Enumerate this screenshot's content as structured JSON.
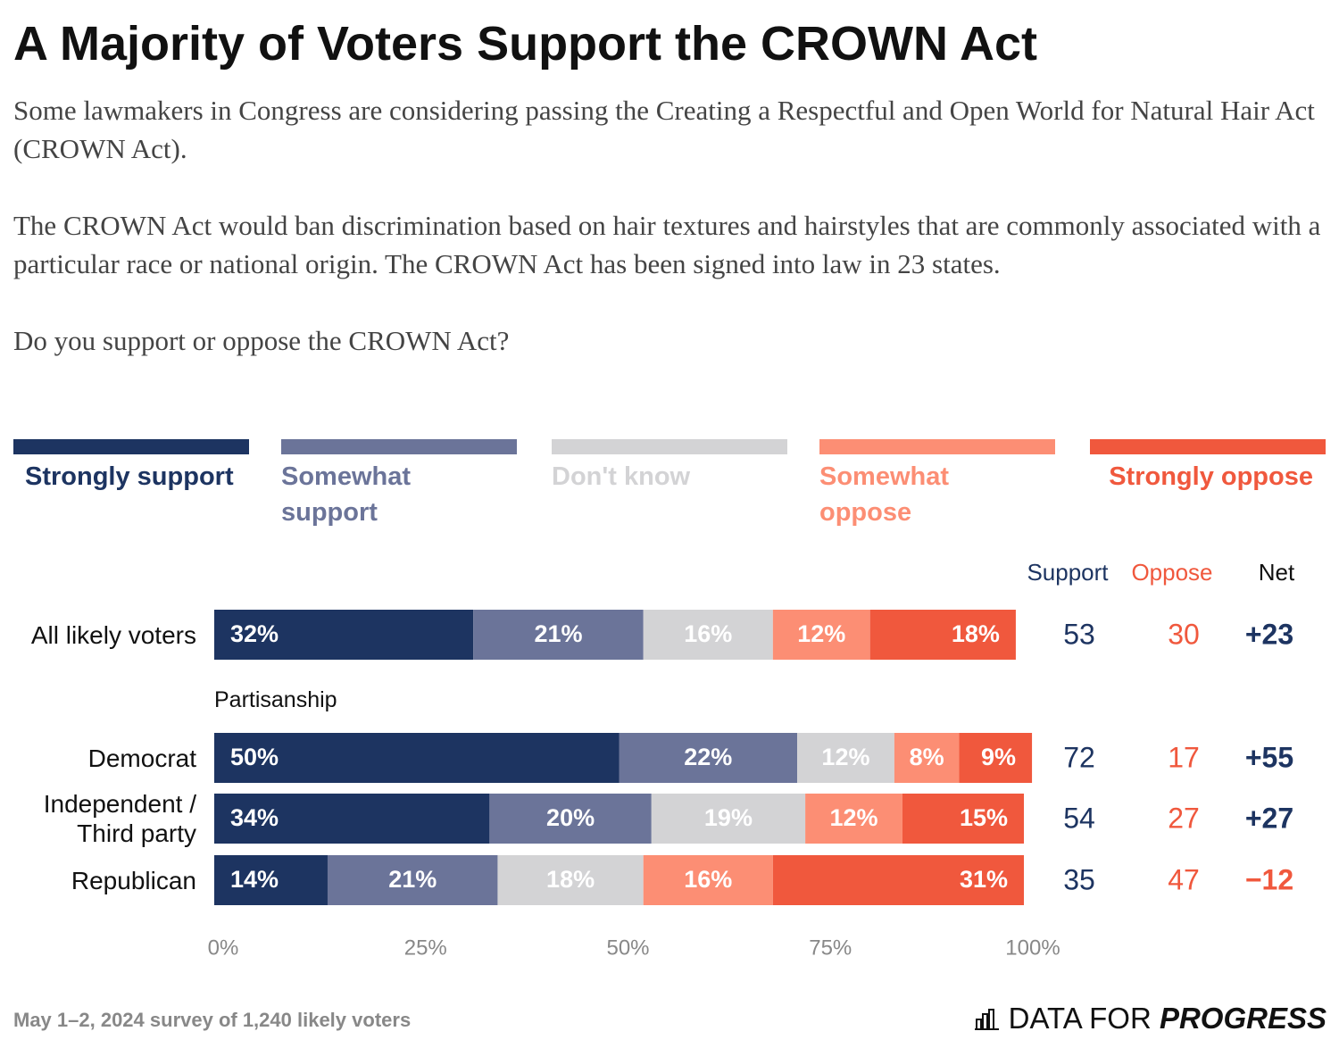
{
  "chart_data": {
    "type": "stacked-bar",
    "title": "A Majority of Voters Support the CROWN Act",
    "subtitle": [
      "Some lawmakers in Congress are considering passing the Creating a Respectful and Open World for Natural Hair Act (CROWN Act).",
      "The CROWN Act would ban discrimination based on hair textures and hairstyles that are commonly associated with a particular race or national origin. The CROWN Act has been signed into law in 23 states.",
      "Do you support or oppose the CROWN Act?"
    ],
    "categories": [
      "All likely voters",
      "Democrat",
      "Independent / Third party",
      "Republican"
    ],
    "group_label": "Partisanship",
    "series": [
      {
        "name": "Strongly support",
        "color": "#1d3461",
        "values": [
          32,
          50,
          34,
          14
        ],
        "value_labels": [
          "32%",
          "50%",
          "34%",
          "14%"
        ]
      },
      {
        "name": "Somewhat support",
        "color": "#6b7499",
        "values": [
          21,
          22,
          20,
          21
        ],
        "value_labels": [
          "21%",
          "22%",
          "20%",
          "21%"
        ]
      },
      {
        "name": "Don't know",
        "color": "#d3d3d5",
        "values": [
          16,
          12,
          19,
          18
        ],
        "value_labels": [
          "16%",
          "12%",
          "19%",
          "18%"
        ]
      },
      {
        "name": "Somewhat oppose",
        "color": "#fc8e74",
        "values": [
          12,
          8,
          12,
          16
        ],
        "value_labels": [
          "12%",
          "8%",
          "12%",
          "16%"
        ]
      },
      {
        "name": "Strongly oppose",
        "color": "#f0583d",
        "values": [
          18,
          9,
          15,
          31
        ],
        "value_labels": [
          "18%",
          "9%",
          "15%",
          "31%"
        ]
      }
    ],
    "columns": [
      {
        "name": "Support",
        "color": "#1d3461",
        "values": [
          53,
          72,
          54,
          35
        ]
      },
      {
        "name": "Oppose",
        "color": "#f0583d",
        "values": [
          30,
          17,
          27,
          47
        ]
      },
      {
        "name": "Net",
        "values": [
          23,
          55,
          27,
          -12
        ],
        "value_labels": [
          "+23",
          "+55",
          "+27",
          "−12"
        ],
        "positive_color": "#1d3461",
        "negative_color": "#f0583d"
      }
    ],
    "xlim": [
      0,
      100
    ],
    "xticks": [
      {
        "value": 0,
        "label": "0%"
      },
      {
        "value": 25,
        "label": "25%"
      },
      {
        "value": 50,
        "label": "50%"
      },
      {
        "value": 75,
        "label": "75%"
      },
      {
        "value": 100,
        "label": "100%"
      }
    ],
    "source": "May 1–2, 2024 survey of 1,240 likely voters",
    "logo": [
      "DATA FOR",
      "PROGRESS"
    ]
  }
}
